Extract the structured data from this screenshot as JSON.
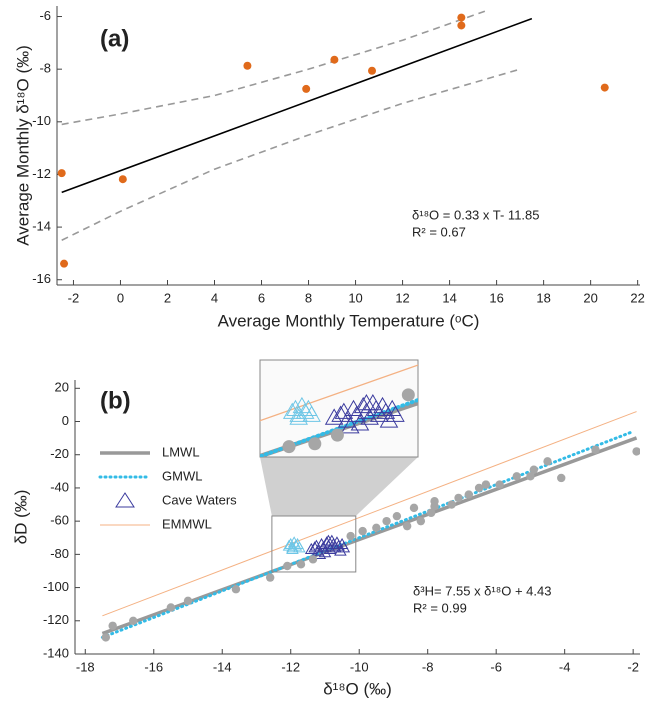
{
  "chart_data": [
    {
      "type": "scatter",
      "panel_label": "(a)",
      "x_label": "Average Monthly Temperature (ᵒC)",
      "y_label": "Average Monthly δ¹⁸O (‰)",
      "annotations": [
        "δ¹⁸O = 0.33 x T- 11.85",
        "R² = 0.67"
      ],
      "xlim": [
        -2.7,
        22.1
      ],
      "ylim": [
        -16.2,
        -5.6
      ],
      "xticks": [
        -2,
        0,
        2,
        4,
        6,
        8,
        10,
        12,
        14,
        16,
        18,
        20,
        22
      ],
      "yticks": [
        -16,
        -14,
        -12,
        -10,
        -8,
        -6
      ],
      "series": [
        {
          "mode": "line",
          "color": "#999999",
          "dash": "dashed",
          "x": [
            -2.5,
            0,
            4,
            8,
            12,
            15.5
          ],
          "values": [
            -10.1,
            -9.7,
            -9.0,
            -8.0,
            -6.9,
            -5.8
          ]
        },
        {
          "mode": "line",
          "color": "#999999",
          "dash": "dashed",
          "x": [
            -2.5,
            0,
            4,
            8,
            12,
            17
          ],
          "values": [
            -14.5,
            -13.4,
            -11.8,
            -10.5,
            -9.3,
            -8.0
          ]
        },
        {
          "mode": "line",
          "color": "#000000",
          "x": [
            -2.5,
            17.5
          ],
          "values": [
            -12.68,
            -6.08
          ]
        },
        {
          "mode": "markers",
          "marker": "circle",
          "color": "#e06a1b",
          "x": [
            -2.5,
            -2.4,
            0.1,
            5.4,
            7.9,
            9.1,
            10.7,
            14.5,
            14.5,
            20.6
          ],
          "values": [
            -11.95,
            -15.39,
            -12.18,
            -7.87,
            -8.75,
            -7.64,
            -8.06,
            -6.34,
            -6.04,
            -8.7
          ]
        }
      ]
    },
    {
      "type": "scatter",
      "panel_label": "(b)",
      "x_label": "δ¹⁸O (‰)",
      "y_label": "δD (‰)",
      "annotations": [
        "δ³H= 7.55 x δ¹⁸O + 4.43",
        "R² = 0.99"
      ],
      "xlim": [
        -18.3,
        -1.8
      ],
      "ylim": [
        -140,
        25
      ],
      "xticks": [
        -18,
        -16,
        -14,
        -12,
        -10,
        -8,
        -6,
        -4,
        -2
      ],
      "yticks": [
        -140,
        -120,
        -100,
        -80,
        -60,
        -40,
        -20,
        0,
        20
      ],
      "legend": "left",
      "inset": {
        "xlim": [
          -12.55,
          -10.1
        ],
        "ylim": [
          -90.6,
          -56.9
        ]
      },
      "series": [
        {
          "name": "LMWL",
          "mode": "line",
          "color": "#999999",
          "width": 3.5,
          "x": [
            -17.5,
            -1.9
          ],
          "values": [
            -127.7,
            -9.9
          ]
        },
        {
          "name": "GMWL",
          "mode": "line",
          "color": "#33bbe6",
          "dash": "dotted",
          "width": 3,
          "x": [
            -17.5,
            -2
          ],
          "values": [
            -130,
            -6
          ]
        },
        {
          "name": "Cave Waters",
          "mode": "markers",
          "marker": "triangle",
          "color": "#3b3b9e",
          "x": [
            -11.4,
            -11.3,
            -11.25,
            -11.2,
            -11.1,
            -11.05,
            -11.0,
            -10.95,
            -10.9,
            -10.85,
            -10.8,
            -10.75,
            -10.7,
            -10.65,
            -10.6,
            -10.55,
            -10.5,
            -10.45,
            -11.15,
            -10.9
          ],
          "values": [
            -77,
            -76,
            -75,
            -78,
            -74,
            -76,
            -79,
            -73,
            -75,
            -77,
            -72,
            -74,
            -76,
            -73,
            -75,
            -78,
            -74,
            -76,
            -80,
            -72
          ]
        },
        {
          "name": "EMMWL",
          "mode": "line",
          "color": "#f4b183",
          "width": 1,
          "x": [
            -17.5,
            -1.9
          ],
          "values": [
            -117,
            6
          ]
        },
        {
          "mode": "markers",
          "marker": "triangle",
          "color": "#6ec6e6",
          "x": [
            -12.05,
            -12.0,
            -11.95,
            -11.9,
            -11.85,
            -11.8,
            -11.75,
            -11.95
          ],
          "values": [
            -75,
            -74,
            -76,
            -73,
            -75,
            -74,
            -76,
            -77
          ]
        },
        {
          "mode": "markers",
          "marker": "circle",
          "color": "#a6a6a6",
          "x": [
            -17.4,
            -17.2,
            -16.6,
            -15.5,
            -15,
            -13.6,
            -12.6,
            -12.1,
            -11.7,
            -11.35,
            -10.25,
            -9.9,
            -9.5,
            -9.2,
            -8.9,
            -8.6,
            -8.4,
            -8.2,
            -7.9,
            -7.8,
            -7.8,
            -7.3,
            -7.1,
            -6.8,
            -6.5,
            -6.3,
            -5.9,
            -5.4,
            -5,
            -4.9,
            -4.5,
            -4.1,
            -3.1,
            -1.9
          ],
          "values": [
            -130,
            -123,
            -120,
            -112,
            -108,
            -101,
            -94,
            -87,
            -86,
            -83,
            -69,
            -66,
            -64,
            -60,
            -57,
            -63,
            -52,
            -60,
            -55,
            -51,
            -48,
            -50,
            -46,
            -44,
            -40,
            -38,
            -38,
            -33,
            -33,
            -29,
            -24,
            -34,
            -17,
            -18
          ]
        }
      ]
    }
  ]
}
